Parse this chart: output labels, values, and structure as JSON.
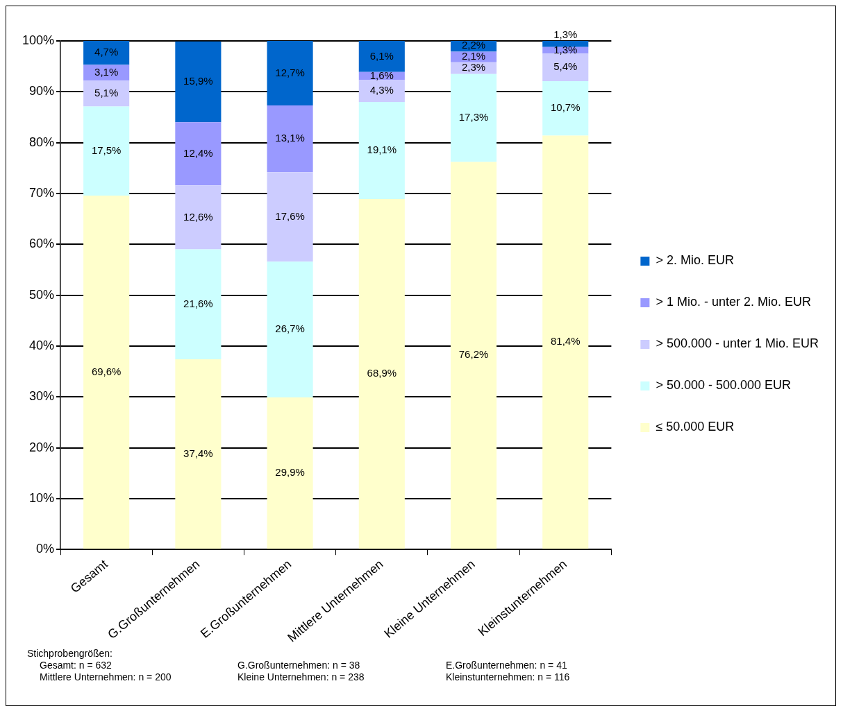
{
  "chart_data": {
    "type": "bar",
    "stacked": true,
    "categories": [
      "Gesamt",
      "G.Großunternehmen",
      "E.Großunternehmen",
      "Mittlere Unternehmen",
      "Kleine Unternehmen",
      "Kleinstunternehmen"
    ],
    "series": [
      {
        "name": "≤ 50.000 EUR",
        "color": "#ffffcc",
        "values": [
          69.6,
          37.4,
          29.9,
          68.9,
          76.2,
          81.4
        ],
        "value_labels": [
          "69,6%",
          "37,4%",
          "29,9%",
          "68,9%",
          "76,2%",
          "81,4%"
        ]
      },
      {
        "name": "> 50.000 - 500.000 EUR",
        "color": "#ccffff",
        "values": [
          17.5,
          21.6,
          26.7,
          19.1,
          17.3,
          10.7
        ],
        "value_labels": [
          "17,5%",
          "21,6%",
          "26,7%",
          "19,1%",
          "17,3%",
          "10,7%"
        ]
      },
      {
        "name": "> 500.000 - unter 1 Mio. EUR",
        "color": "#ccccff",
        "values": [
          5.1,
          12.6,
          17.6,
          4.3,
          2.3,
          5.4
        ],
        "value_labels": [
          "5,1%",
          "12,6%",
          "17,6%",
          "4,3%",
          "2,3%",
          "5,4%"
        ]
      },
      {
        "name": "> 1 Mio. - unter 2. Mio. EUR",
        "color": "#9999ff",
        "values": [
          3.1,
          12.4,
          13.1,
          1.6,
          2.1,
          1.3
        ],
        "value_labels": [
          "3,1%",
          "12,4%",
          "13,1%",
          "1,6%",
          "2,1%",
          "1,3%"
        ]
      },
      {
        "name": "> 2. Mio. EUR",
        "color": "#0066cc",
        "values": [
          4.7,
          15.9,
          12.7,
          6.1,
          2.2,
          1.3
        ],
        "value_labels": [
          "4,7%",
          "15,9%",
          "12,7%",
          "6,1%",
          "2,2%",
          "1,3%"
        ]
      }
    ],
    "ylim": [
      0,
      100
    ],
    "yticks": [
      {
        "value": 0,
        "label": "0%"
      },
      {
        "value": 10,
        "label": "10%"
      },
      {
        "value": 20,
        "label": "20%"
      },
      {
        "value": 30,
        "label": "30%"
      },
      {
        "value": 40,
        "label": "40%"
      },
      {
        "value": 50,
        "label": "50%"
      },
      {
        "value": 60,
        "label": "60%"
      },
      {
        "value": 70,
        "label": "70%"
      },
      {
        "value": 80,
        "label": "80%"
      },
      {
        "value": 90,
        "label": "90%"
      },
      {
        "value": 100,
        "label": "100%"
      }
    ],
    "grid": "y",
    "legend": "right",
    "annotations": [
      "Stichprobengrößen:",
      "Gesamt: n = 632",
      "G.Großunternehmen: n = 38",
      "E.Großunternehmen: n = 41",
      "Mittlere Unternehmen: n = 200",
      "Kleine Unternehmen: n = 238",
      "Kleinstunternehmen: n = 116"
    ]
  }
}
